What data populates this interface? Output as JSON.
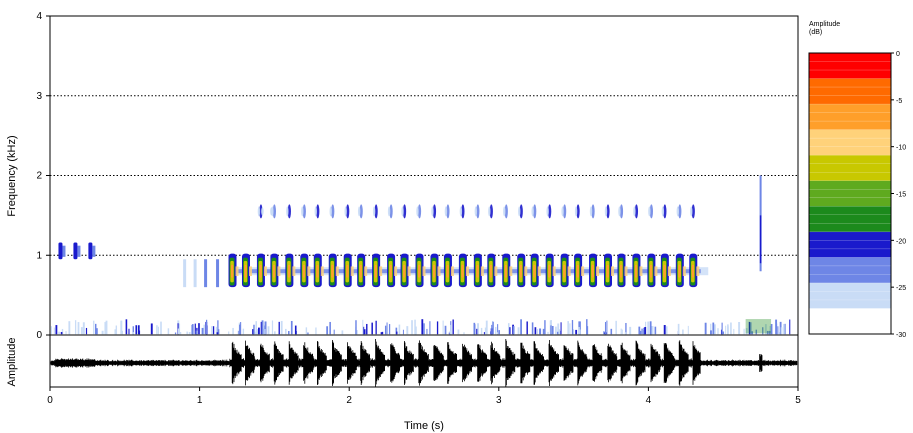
{
  "chart_data": {
    "type": "heatmap",
    "xlabel": "Time (s)",
    "ylabel": "Frequency (kHz)",
    "xlim": [
      0,
      5
    ],
    "ylim": [
      0,
      4
    ],
    "x_ticks": [
      "0",
      "1",
      "2",
      "3",
      "4",
      "5"
    ],
    "y_ticks": [
      "0",
      "1",
      "2",
      "3",
      "4"
    ],
    "grid": "dotted horizontal lines at 1, 2, 3 kHz",
    "oscillogram": {
      "ylabel": "Amplitude",
      "loud_segment_s": [
        1.2,
        4.35
      ],
      "pulse_times_s": [
        1.22,
        1.31,
        1.41,
        1.5,
        1.6,
        1.7,
        1.79,
        1.89,
        1.99,
        2.08,
        2.18,
        2.28,
        2.37,
        2.47,
        2.57,
        2.66,
        2.76,
        2.86,
        2.95,
        3.05,
        3.15,
        3.24,
        3.34,
        3.44,
        3.53,
        3.63,
        3.73,
        3.82,
        3.92,
        4.02,
        4.11,
        4.21,
        4.3
      ]
    },
    "series": [
      {
        "name": "main call band",
        "frequency_khz": 0.8,
        "time_range_s": [
          0.9,
          4.4
        ],
        "pulse_times_s": [
          1.22,
          1.31,
          1.41,
          1.5,
          1.6,
          1.7,
          1.79,
          1.89,
          1.99,
          2.08,
          2.18,
          2.28,
          2.37,
          2.47,
          2.57,
          2.66,
          2.76,
          2.86,
          2.95,
          3.05,
          3.15,
          3.24,
          3.34,
          3.44,
          3.53,
          3.63,
          3.73,
          3.82,
          3.92,
          4.02,
          4.11,
          4.21,
          4.3
        ],
        "peak_amplitude_db": -5
      },
      {
        "name": "harmonic",
        "frequency_khz": 1.55,
        "time_range_s": [
          1.4,
          4.35
        ],
        "peak_amplitude_db": -20
      },
      {
        "name": "early chirps",
        "frequency_khz": 1.05,
        "time_range_s": [
          0.05,
          0.28
        ],
        "peak_amplitude_db": -21
      },
      {
        "name": "broadband click",
        "time_s": 4.75,
        "frequency_range_khz": [
          0.8,
          2.0
        ]
      },
      {
        "name": "low-frequency noise",
        "frequency_range_khz": [
          0,
          0.2
        ],
        "time_range_s": [
          0,
          5
        ]
      }
    ],
    "colorbar": {
      "title": "Amplitude\n(dB)",
      "ticks": [
        "0",
        "-5",
        "-10",
        "-15",
        "-20",
        "-25",
        "-30"
      ],
      "range_db": [
        -30,
        0
      ],
      "colors": [
        "#ff0000",
        "#ff6a00",
        "#ff9f2a",
        "#ffd27a",
        "#c8c800",
        "#5faa1f",
        "#1c8a1c",
        "#1a1acc",
        "#6e86e6",
        "#c9dcf6",
        "#ffffff"
      ]
    }
  }
}
